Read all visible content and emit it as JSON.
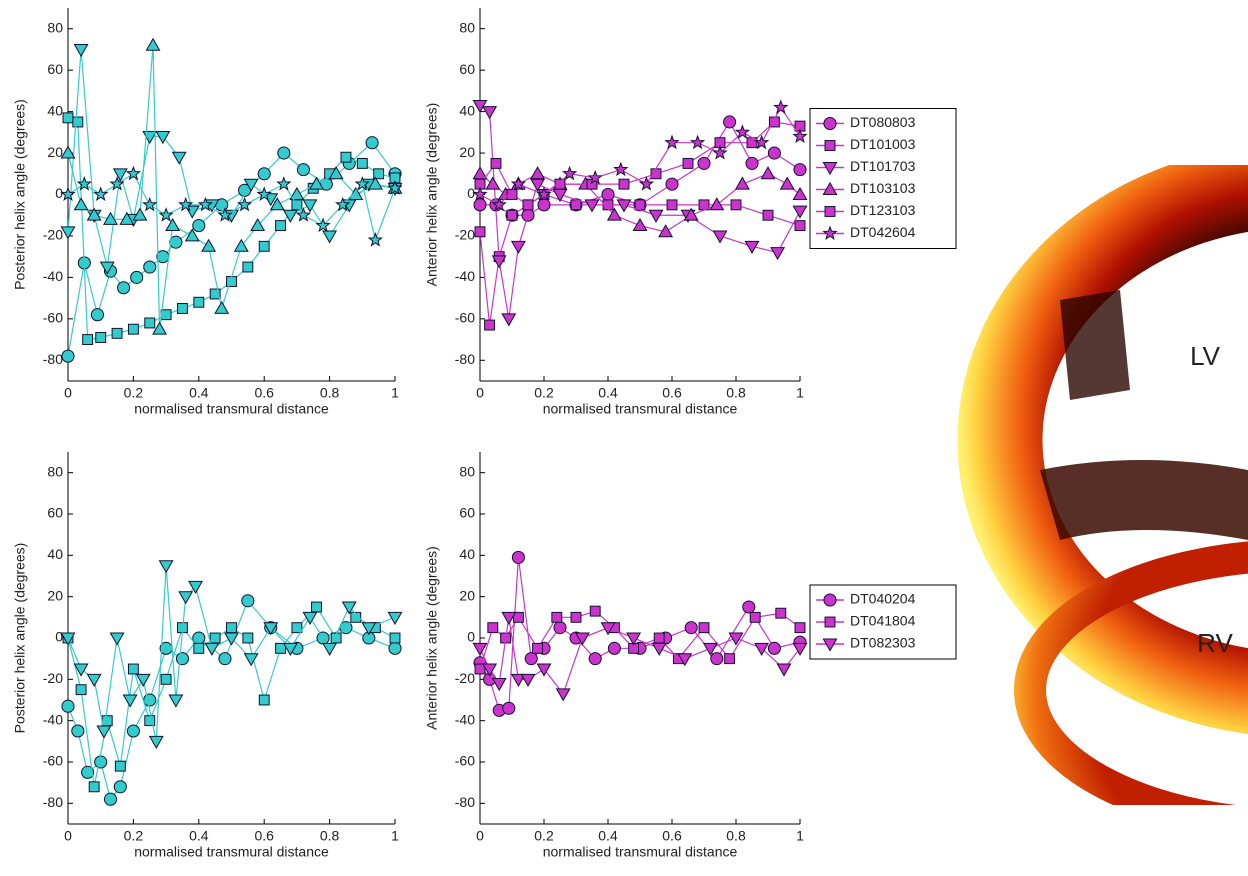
{
  "chart_data": [
    {
      "type": "line",
      "ylabel": "Posterior helix angle (degrees)",
      "xlabel": "normalised transmural distance",
      "xlim": [
        0,
        1
      ],
      "xticks": [
        0,
        0.2,
        0.4,
        0.6,
        0.8,
        1
      ],
      "ylim": [
        -90,
        90
      ],
      "yticks": [
        -80,
        -60,
        -40,
        -20,
        0,
        20,
        40,
        60,
        80
      ],
      "series": [
        {
          "color": "#33cccc",
          "marker": "circle",
          "x": [
            0,
            0.05,
            0.09,
            0.13,
            0.17,
            0.21,
            0.25,
            0.29,
            0.33,
            0.4,
            0.47,
            0.54,
            0.6,
            0.66,
            0.72,
            0.79,
            0.86,
            0.93,
            1
          ],
          "values": [
            -78,
            -33,
            -58,
            -37,
            -45,
            -40,
            -35,
            -30,
            -23,
            -15,
            -5,
            2,
            10,
            20,
            12,
            5,
            15,
            25,
            10
          ]
        },
        {
          "color": "#33cccc",
          "marker": "square",
          "x": [
            0,
            0.03,
            0.06,
            0.1,
            0.15,
            0.2,
            0.25,
            0.3,
            0.35,
            0.4,
            0.45,
            0.5,
            0.55,
            0.6,
            0.65,
            0.7,
            0.75,
            0.8,
            0.85,
            0.9,
            0.95,
            1
          ],
          "values": [
            37,
            35,
            -70,
            -69,
            -67,
            -65,
            -62,
            -58,
            -55,
            -52,
            -48,
            -42,
            -35,
            -25,
            -15,
            -5,
            3,
            10,
            18,
            15,
            10,
            8
          ]
        },
        {
          "color": "#33cccc",
          "marker": "down",
          "x": [
            0,
            0.04,
            0.08,
            0.12,
            0.16,
            0.2,
            0.25,
            0.29,
            0.34,
            0.38,
            0.44,
            0.5,
            0.56,
            0.62,
            0.68,
            0.74,
            0.8,
            0.86,
            0.92,
            1
          ],
          "values": [
            -18,
            70,
            -10,
            -35,
            10,
            -12,
            28,
            28,
            18,
            -8,
            -5,
            -10,
            5,
            -2,
            -10,
            -5,
            -20,
            -5,
            5,
            3
          ]
        },
        {
          "color": "#33cccc",
          "marker": "up",
          "x": [
            0,
            0.04,
            0.08,
            0.13,
            0.18,
            0.22,
            0.26,
            0.28,
            0.32,
            0.38,
            0.43,
            0.47,
            0.53,
            0.58,
            0.64,
            0.7,
            0.76,
            0.82,
            0.88,
            0.94,
            1
          ],
          "values": [
            20,
            -5,
            -10,
            -12,
            -12,
            -10,
            72,
            -65,
            -15,
            -20,
            -25,
            -55,
            -25,
            -15,
            -5,
            0,
            5,
            10,
            0,
            5,
            3
          ]
        },
        {
          "color": "#33cccc",
          "marker": "star",
          "x": [
            0,
            0.05,
            0.1,
            0.15,
            0.2,
            0.25,
            0.3,
            0.36,
            0.42,
            0.48,
            0.54,
            0.6,
            0.66,
            0.72,
            0.78,
            0.84,
            0.9,
            0.94,
            1
          ],
          "values": [
            0,
            5,
            0,
            5,
            10,
            -5,
            -10,
            -5,
            -5,
            -10,
            -5,
            0,
            5,
            -10,
            -15,
            -5,
            5,
            -22,
            3
          ]
        }
      ]
    },
    {
      "type": "line",
      "ylabel": "Anterior helix angle (degrees)",
      "xlabel": "normalised transmural distance",
      "xlim": [
        0,
        1
      ],
      "xticks": [
        0,
        0.2,
        0.4,
        0.6,
        0.8,
        1
      ],
      "ylim": [
        -90,
        90
      ],
      "yticks": [
        -80,
        -60,
        -40,
        -20,
        0,
        20,
        40,
        60,
        80
      ],
      "legend": "outside right",
      "series": [
        {
          "name": "DT080803",
          "color": "#cc33cc",
          "marker": "circle",
          "x": [
            0,
            0.05,
            0.1,
            0.15,
            0.2,
            0.3,
            0.4,
            0.5,
            0.6,
            0.7,
            0.78,
            0.85,
            0.92,
            1
          ],
          "values": [
            -5,
            -5,
            -10,
            -10,
            -5,
            -5,
            0,
            -5,
            5,
            15,
            35,
            15,
            20,
            12
          ]
        },
        {
          "name": "DT101003",
          "color": "#cc33cc",
          "marker": "square",
          "x": [
            0,
            0.03,
            0.06,
            0.1,
            0.15,
            0.2,
            0.3,
            0.4,
            0.5,
            0.6,
            0.7,
            0.8,
            0.9,
            1
          ],
          "values": [
            -18,
            -63,
            -30,
            -10,
            -5,
            0,
            -5,
            -5,
            -5,
            -5,
            -5,
            -5,
            -10,
            -15
          ]
        },
        {
          "name": "DT101703",
          "color": "#cc33cc",
          "marker": "down",
          "x": [
            0,
            0.03,
            0.06,
            0.09,
            0.12,
            0.18,
            0.25,
            0.35,
            0.45,
            0.55,
            0.65,
            0.75,
            0.85,
            0.93,
            1
          ],
          "values": [
            43,
            40,
            -32,
            -60,
            -25,
            5,
            0,
            -5,
            -5,
            -10,
            -10,
            -20,
            -25,
            -28,
            -8
          ]
        },
        {
          "name": "DT103103",
          "color": "#cc33cc",
          "marker": "up",
          "x": [
            0,
            0.04,
            0.08,
            0.12,
            0.18,
            0.25,
            0.33,
            0.42,
            0.5,
            0.58,
            0.66,
            0.74,
            0.82,
            0.9,
            0.96,
            1
          ],
          "values": [
            10,
            5,
            0,
            5,
            10,
            5,
            5,
            -10,
            -15,
            -18,
            -10,
            -5,
            5,
            10,
            5,
            0
          ]
        },
        {
          "name": "DT123103",
          "color": "#cc33cc",
          "marker": "square",
          "x": [
            0,
            0.05,
            0.1,
            0.15,
            0.25,
            0.35,
            0.45,
            0.55,
            0.65,
            0.75,
            0.85,
            0.92,
            1
          ],
          "values": [
            5,
            15,
            0,
            -5,
            5,
            5,
            5,
            10,
            15,
            25,
            25,
            35,
            33
          ]
        },
        {
          "name": "DT042604",
          "color": "#cc33cc",
          "marker": "star",
          "x": [
            0,
            0.06,
            0.12,
            0.2,
            0.28,
            0.36,
            0.44,
            0.52,
            0.6,
            0.68,
            0.75,
            0.82,
            0.88,
            0.94,
            1
          ],
          "values": [
            0,
            -5,
            5,
            0,
            10,
            8,
            12,
            5,
            25,
            25,
            20,
            30,
            25,
            42,
            28
          ]
        }
      ]
    },
    {
      "type": "line",
      "ylabel": "Posterior helix angle (degrees)",
      "xlabel": "normalised transmural distance",
      "xlim": [
        0,
        1
      ],
      "xticks": [
        0,
        0.2,
        0.4,
        0.6,
        0.8,
        1
      ],
      "ylim": [
        -90,
        90
      ],
      "yticks": [
        -80,
        -60,
        -40,
        -20,
        0,
        20,
        40,
        60,
        80
      ],
      "series": [
        {
          "color": "#33cccc",
          "marker": "circle",
          "x": [
            0,
            0.03,
            0.06,
            0.1,
            0.13,
            0.16,
            0.2,
            0.25,
            0.3,
            0.35,
            0.4,
            0.48,
            0.55,
            0.62,
            0.7,
            0.78,
            0.85,
            0.92,
            1
          ],
          "values": [
            -33,
            -45,
            -65,
            -60,
            -78,
            -72,
            -45,
            -30,
            -5,
            -10,
            0,
            -10,
            18,
            5,
            -5,
            0,
            5,
            0,
            -5
          ]
        },
        {
          "color": "#33cccc",
          "marker": "square",
          "x": [
            0,
            0.04,
            0.08,
            0.12,
            0.16,
            0.2,
            0.25,
            0.3,
            0.35,
            0.4,
            0.45,
            0.5,
            0.55,
            0.6,
            0.65,
            0.7,
            0.76,
            0.82,
            0.88,
            0.94,
            1
          ],
          "values": [
            0,
            -25,
            -72,
            -40,
            -62,
            -15,
            -40,
            -20,
            5,
            -5,
            0,
            5,
            0,
            -30,
            -5,
            5,
            15,
            0,
            10,
            5,
            0
          ]
        },
        {
          "color": "#33cccc",
          "marker": "down",
          "x": [
            0,
            0.04,
            0.08,
            0.11,
            0.15,
            0.19,
            0.23,
            0.27,
            0.3,
            0.33,
            0.36,
            0.39,
            0.44,
            0.5,
            0.56,
            0.62,
            0.68,
            0.74,
            0.8,
            0.86,
            0.92,
            1
          ],
          "values": [
            0,
            -15,
            -20,
            -45,
            0,
            -30,
            -20,
            -50,
            35,
            -30,
            20,
            25,
            -5,
            0,
            -10,
            5,
            -5,
            10,
            -5,
            15,
            5,
            10
          ]
        }
      ]
    },
    {
      "type": "line",
      "ylabel": "Anterior helix angle (degrees)",
      "xlabel": "normalised transmural distance",
      "xlim": [
        0,
        1
      ],
      "xticks": [
        0,
        0.2,
        0.4,
        0.6,
        0.8,
        1
      ],
      "ylim": [
        -90,
        90
      ],
      "yticks": [
        -80,
        -60,
        -40,
        -20,
        0,
        20,
        40,
        60,
        80
      ],
      "legend": "outside right",
      "series": [
        {
          "name": "DT040204",
          "color": "#cc33cc",
          "marker": "circle",
          "x": [
            0,
            0.03,
            0.06,
            0.09,
            0.12,
            0.16,
            0.2,
            0.25,
            0.3,
            0.36,
            0.42,
            0.5,
            0.58,
            0.66,
            0.74,
            0.84,
            0.92,
            1
          ],
          "values": [
            -12,
            -20,
            -35,
            -34,
            39,
            -10,
            -5,
            5,
            0,
            -10,
            -5,
            -5,
            0,
            5,
            -10,
            15,
            -5,
            -2
          ]
        },
        {
          "name": "DT041804",
          "color": "#cc33cc",
          "marker": "square",
          "x": [
            0,
            0.04,
            0.08,
            0.12,
            0.18,
            0.24,
            0.3,
            0.36,
            0.42,
            0.48,
            0.56,
            0.62,
            0.7,
            0.78,
            0.86,
            0.94,
            1
          ],
          "values": [
            -15,
            5,
            0,
            10,
            -5,
            10,
            10,
            13,
            5,
            -5,
            0,
            -10,
            5,
            -10,
            10,
            12,
            5
          ]
        },
        {
          "name": "DT082303",
          "color": "#cc33cc",
          "marker": "down",
          "x": [
            0,
            0.03,
            0.06,
            0.09,
            0.12,
            0.15,
            0.2,
            0.26,
            0.32,
            0.4,
            0.48,
            0.56,
            0.64,
            0.72,
            0.8,
            0.88,
            0.95,
            1
          ],
          "values": [
            -5,
            -15,
            -22,
            10,
            -20,
            -20,
            -15,
            -27,
            0,
            5,
            0,
            -5,
            -10,
            -5,
            0,
            -5,
            -15,
            -5
          ]
        }
      ]
    }
  ],
  "image": {
    "labels": [
      "LV",
      "RV"
    ]
  }
}
